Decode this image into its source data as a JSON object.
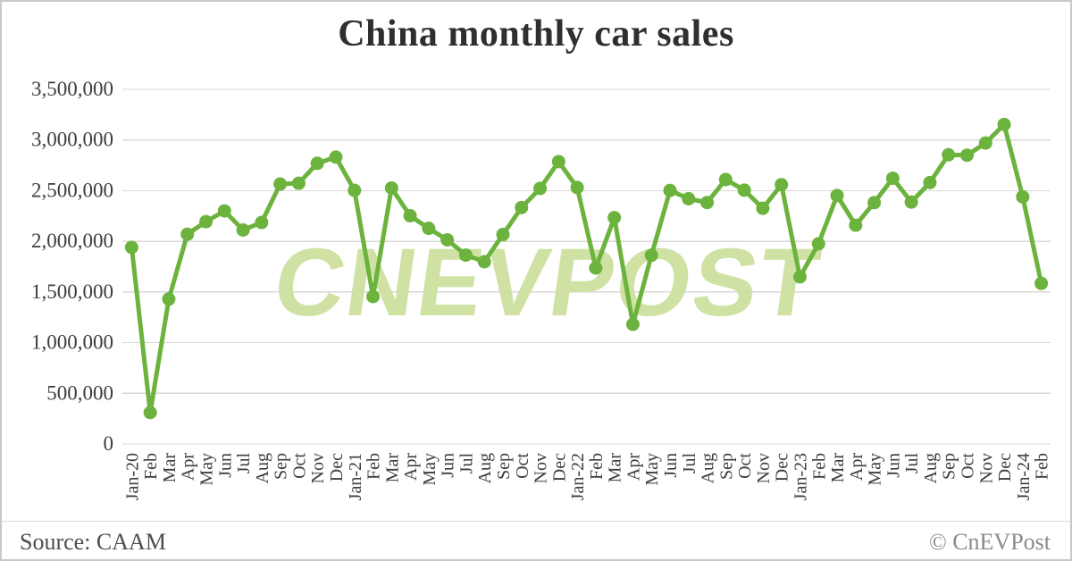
{
  "chart_data": {
    "type": "line",
    "title": "China monthly car sales",
    "xlabel": "",
    "ylabel": "",
    "ylim": [
      0,
      3500000
    ],
    "y_ticks": [
      0,
      500000,
      1000000,
      1500000,
      2000000,
      2500000,
      3000000,
      3500000
    ],
    "y_tick_labels": [
      "0",
      "500,000",
      "1,000,000",
      "1,500,000",
      "2,000,000",
      "2,500,000",
      "3,000,000",
      "3,500,000"
    ],
    "grid": "horizontal",
    "legend_position": "none",
    "categories": [
      "Jan-20",
      "Feb",
      "Mar",
      "Apr",
      "May",
      "Jun",
      "Jul",
      "Aug",
      "Sep",
      "Oct",
      "Nov",
      "Dec",
      "Jan-21",
      "Feb",
      "Mar",
      "Apr",
      "May",
      "Jun",
      "Jul",
      "Aug",
      "Sep",
      "Oct",
      "Nov",
      "Dec",
      "Jan-22",
      "Feb",
      "Mar",
      "Apr",
      "May",
      "Jun",
      "Jul",
      "Aug",
      "Sep",
      "Oct",
      "Nov",
      "Dec",
      "Jan-23",
      "Feb",
      "Mar",
      "Apr",
      "May",
      "Jun",
      "Jul",
      "Aug",
      "Sep",
      "Oct",
      "Nov",
      "Dec",
      "Jan-24",
      "Feb"
    ],
    "series": [
      {
        "name": "China monthly car sales",
        "color": "#6cb33e",
        "values": [
          1941000,
          310000,
          1430000,
          2070000,
          2194000,
          2300000,
          2112000,
          2186000,
          2565000,
          2573000,
          2770000,
          2831000,
          2503000,
          1455000,
          2526000,
          2252000,
          2128000,
          2015000,
          1864000,
          1799000,
          2067000,
          2333000,
          2522000,
          2786000,
          2531000,
          1737000,
          2234000,
          1181000,
          1862000,
          2502000,
          2420000,
          2383000,
          2610000,
          2505000,
          2326000,
          2559000,
          1649000,
          1976000,
          2452000,
          2159000,
          2382000,
          2622000,
          2387000,
          2580000,
          2854000,
          2850000,
          2970000,
          3153000,
          2439000,
          1585000
        ]
      }
    ]
  },
  "watermark": {
    "text": "CNEVPOST",
    "color": "#cde1a0"
  },
  "footer": {
    "source": "Source: CAAM",
    "copyright": "© CnEVPost"
  },
  "style_colors": {
    "gridline": "#d8d8d8",
    "axis_text": "#3d3d3d",
    "title_text": "#2f2f2f"
  }
}
